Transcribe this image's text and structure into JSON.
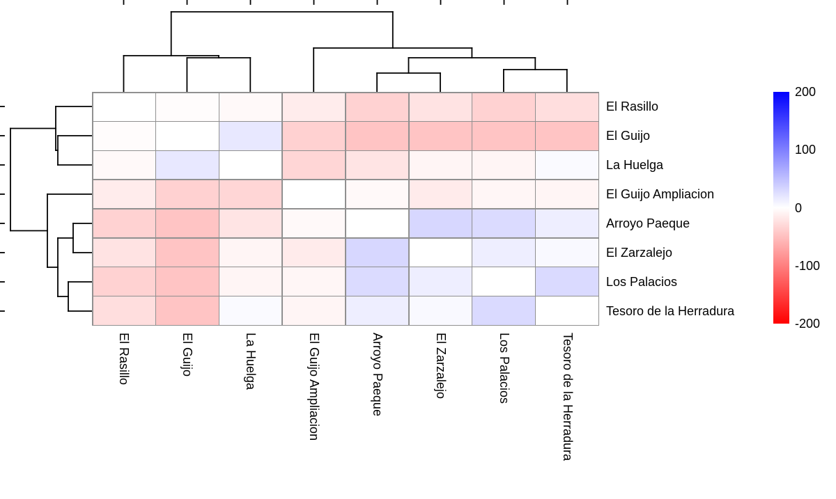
{
  "chart_data": {
    "type": "heatmap",
    "subtype": "clustered-heatmap-with-dendrograms",
    "title": "",
    "rows": [
      "El Rasillo",
      "El Guijo",
      "La Huelga",
      "El Guijo Ampliacion",
      "Arroyo Paeque",
      "El Zarzalejo",
      "Los Palacios",
      "Tesoro de la Herradura"
    ],
    "cols": [
      "El Rasillo",
      "El Guijo",
      "La Huelga",
      "El Guijo Ampliacion",
      "Arroyo Paeque",
      "El Zarzalejo",
      "Los Palacios",
      "Tesoro de la Herradura"
    ],
    "values": [
      [
        0,
        -2,
        -5,
        -15,
        -35,
        -22,
        -35,
        -26
      ],
      [
        -2,
        0,
        18,
        -36,
        -46,
        -46,
        -46,
        -46
      ],
      [
        -5,
        18,
        0,
        -32,
        -21,
        -8,
        -8,
        4
      ],
      [
        -15,
        -36,
        -32,
        0,
        -5,
        -16,
        -7,
        -8
      ],
      [
        -35,
        -46,
        -21,
        -5,
        0,
        31,
        28,
        13
      ],
      [
        -22,
        -46,
        -8,
        -16,
        31,
        0,
        13,
        5
      ],
      [
        -35,
        -46,
        -8,
        -7,
        28,
        13,
        0,
        29
      ],
      [
        -26,
        -46,
        4,
        -8,
        13,
        5,
        29,
        0
      ]
    ],
    "vmin": -200,
    "vmax": 200,
    "diagonal_value": 0,
    "colorbar": {
      "tick_labels": [
        "200",
        "100",
        "0",
        "-100",
        "-200"
      ],
      "tick_values": [
        200,
        100,
        0,
        -100,
        -200
      ],
      "max_color": "#0000ff",
      "mid_color": "#ffffff",
      "min_color": "#ff0000"
    },
    "grid_line_color": "#909090",
    "dendrogram_color": "#000000",
    "col_dendrogram": {
      "topology": "((ElRasillo,(ElGuijo,LaHuelga)),(ElGuijoAmpliacion,((ArroyoPaeque,ElZarzalejo),(LosPalacios,TesoroDeLaHerradura))))",
      "segments": [
        [
          177.5,
          132,
          177.5,
          80
        ],
        [
          177.5,
          80,
          313.9,
          80
        ],
        [
          313.9,
          80,
          313.9,
          83
        ],
        [
          268.4,
          83,
          359.3,
          83
        ],
        [
          268.4,
          83,
          268.4,
          132
        ],
        [
          359.3,
          83,
          359.3,
          132
        ],
        [
          245.7,
          80,
          245.7,
          17
        ],
        [
          245.7,
          17,
          563.8,
          17
        ],
        [
          563.8,
          17,
          563.8,
          69
        ],
        [
          450.2,
          69,
          677.4,
          69
        ],
        [
          450.2,
          69,
          450.2,
          132
        ],
        [
          677.4,
          69,
          677.4,
          83
        ],
        [
          586.5,
          83,
          768.3,
          83
        ],
        [
          586.5,
          83,
          586.5,
          105
        ],
        [
          541.1,
          105,
          632,
          105
        ],
        [
          541.1,
          105,
          541.1,
          132
        ],
        [
          632,
          105,
          632,
          132
        ],
        [
          768.3,
          83,
          768.3,
          100
        ],
        [
          722.9,
          100,
          813.8,
          100
        ],
        [
          722.9,
          100,
          722.9,
          132
        ],
        [
          813.8,
          100,
          813.8,
          132
        ]
      ]
    },
    "row_dendrogram": {
      "topology": "((ElRasillo,(ElGuijo,LaHuelga)),(ElGuijoAmpliacion,((ArroyoPaeque,ElZarzalejo),(LosPalacios,TesoroDeLaHerradura))))",
      "segments": [
        [
          132,
          153,
          80,
          153
        ],
        [
          80,
          153,
          80,
          216
        ],
        [
          80,
          216,
          83,
          216
        ],
        [
          83,
          195,
          83,
          237
        ],
        [
          83,
          195,
          132,
          195
        ],
        [
          83,
          237,
          132,
          237
        ],
        [
          80,
          184.5,
          15,
          184.5
        ],
        [
          15,
          184.5,
          15,
          331.5
        ],
        [
          15,
          331.5,
          68,
          331.5
        ],
        [
          68,
          279,
          68,
          384
        ],
        [
          68,
          279,
          132,
          279
        ],
        [
          68,
          384,
          83,
          384
        ],
        [
          83,
          342,
          83,
          426
        ],
        [
          83,
          342,
          105,
          342
        ],
        [
          105,
          321,
          105,
          363
        ],
        [
          105,
          321,
          132,
          321
        ],
        [
          105,
          363,
          132,
          363
        ],
        [
          83,
          426,
          98,
          426
        ],
        [
          98,
          405,
          98,
          447
        ],
        [
          98,
          405,
          132,
          405
        ],
        [
          98,
          447,
          132,
          447
        ]
      ]
    }
  }
}
